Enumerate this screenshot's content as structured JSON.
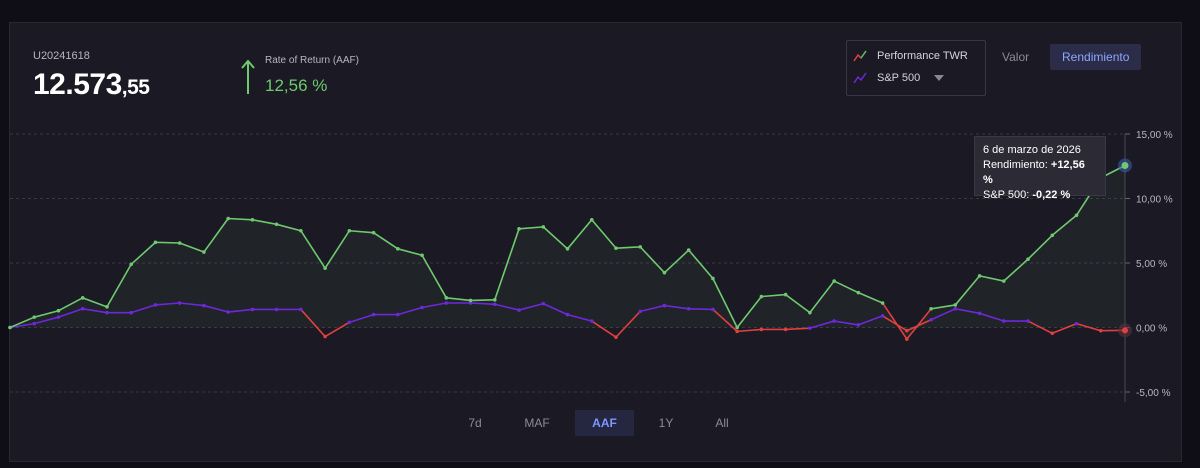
{
  "account": {
    "id": "U20241618",
    "balance_int": "12.573",
    "balance_dec": ",55"
  },
  "rate_of_return": {
    "label": "Rate of Return (AAF)",
    "value": "12,56 %",
    "icon": "arrow-up-icon",
    "color": "#6fca6f"
  },
  "legend": {
    "items": [
      {
        "label": "Performance TWR",
        "icon": "line-chart-icon",
        "color": "#e0403f",
        "color2": "#4fbf6b"
      },
      {
        "label": "S&P 500",
        "icon": "line-chart-icon",
        "color": "#6d28d9"
      }
    ]
  },
  "view_toggle": {
    "options": [
      "Valor",
      "Rendimiento"
    ],
    "active": "Rendimiento"
  },
  "time_tabs": {
    "options": [
      "7d",
      "MAF",
      "AAF",
      "1Y",
      "All"
    ],
    "active": "AAF"
  },
  "tooltip": {
    "date": "6 de marzo de 2026",
    "line1_label": "Rendimiento:",
    "line1_value": "+12,56 %",
    "line2_label": "S&P 500:",
    "line2_value": "-0,22 %"
  },
  "colors": {
    "performance": "#6fca6f",
    "performance_negative": "#e0403f",
    "sp500": "#6d28d9",
    "highlight": "#3c5fb0"
  },
  "chart_data": {
    "type": "line",
    "ylim": [
      -5,
      15
    ],
    "y_ticks": [
      "15,00 %",
      "10,00 %",
      "5,00 %",
      "0,00 %",
      "-5,00 %"
    ],
    "y_tick_values": [
      15,
      10,
      5,
      0,
      -5
    ],
    "grid": true,
    "series": [
      {
        "name": "Performance TWR",
        "values": [
          0,
          0.8,
          1.3,
          2.3,
          1.6,
          4.9,
          6.6,
          6.55,
          5.85,
          8.45,
          8.35,
          8.0,
          7.5,
          4.6,
          7.5,
          7.35,
          6.1,
          5.6,
          2.3,
          2.1,
          2.15,
          7.65,
          7.8,
          6.1,
          8.35,
          6.15,
          6.25,
          4.25,
          6.0,
          3.8,
          0,
          2.4,
          2.55,
          1.15,
          3.6,
          2.7,
          1.9,
          -0.9,
          1.45,
          1.75,
          4.0,
          3.6,
          5.3,
          7.15,
          8.7,
          11.6,
          12.56
        ]
      },
      {
        "name": "S&P 500",
        "values": [
          0,
          0.3,
          0.8,
          1.45,
          1.15,
          1.15,
          1.75,
          1.9,
          1.7,
          1.2,
          1.4,
          1.4,
          1.4,
          -0.7,
          0.4,
          1.0,
          1.0,
          1.55,
          1.9,
          1.9,
          1.8,
          1.35,
          1.85,
          1.0,
          0.5,
          -0.75,
          1.25,
          1.7,
          1.45,
          1.4,
          -0.3,
          -0.15,
          -0.15,
          -0.05,
          0.5,
          0.2,
          0.9,
          -0.25,
          0.6,
          1.45,
          1.1,
          0.5,
          0.5,
          -0.45,
          0.3,
          -0.25,
          -0.22
        ]
      }
    ]
  }
}
